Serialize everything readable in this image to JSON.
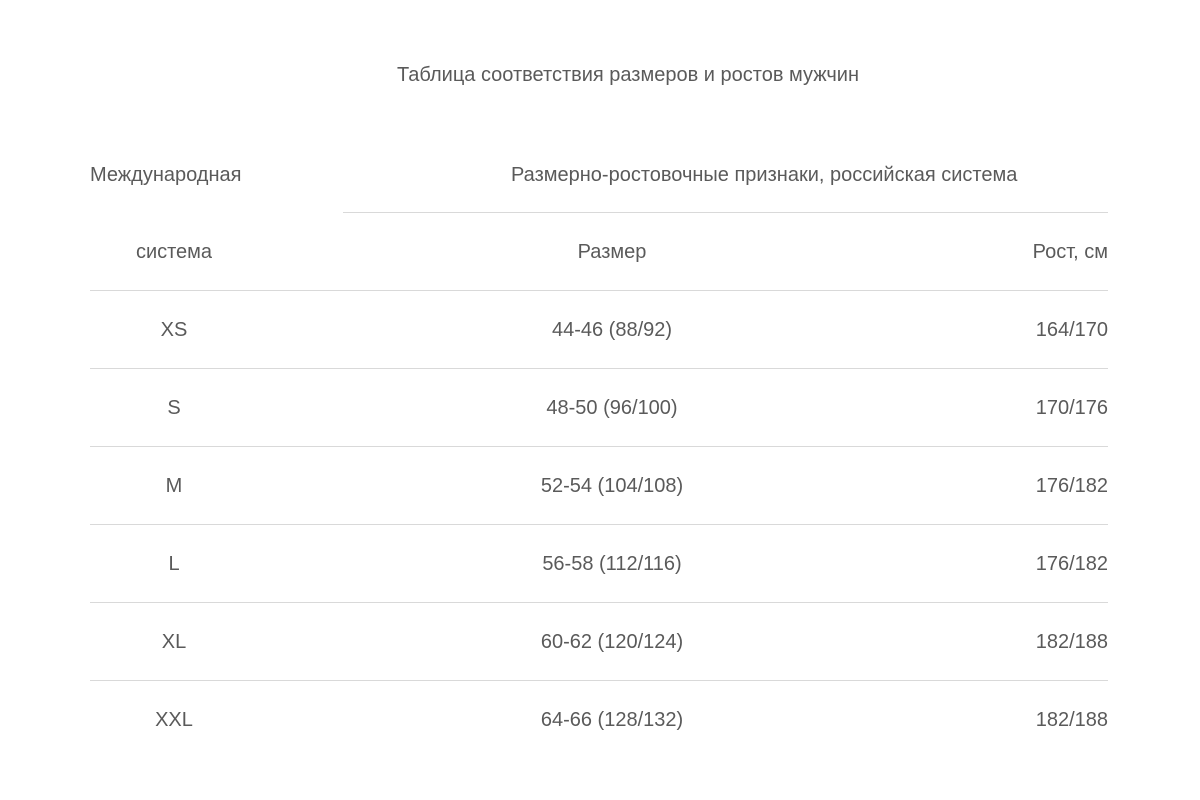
{
  "title": "Таблица соответствия размеров и ростов мужчин",
  "header": {
    "international_top": "Международная",
    "international_bottom": "система",
    "russian_group": "Размерно-ростовочные признаки, российская система",
    "size": "Размер",
    "height": "Рост, см"
  },
  "rows": [
    {
      "intl": "XS",
      "size": "44-46 (88/92)",
      "height": "164/170"
    },
    {
      "intl": "S",
      "size": "48-50 (96/100)",
      "height": "170/176"
    },
    {
      "intl": "M",
      "size": "52-54 (104/108)",
      "height": "176/182"
    },
    {
      "intl": "L",
      "size": "56-58 (112/116)",
      "height": "176/182"
    },
    {
      "intl": "XL",
      "size": "60-62 (120/124)",
      "height": "182/188"
    },
    {
      "intl": "XXL",
      "size": "64-66 (128/132)",
      "height": "182/188"
    }
  ]
}
